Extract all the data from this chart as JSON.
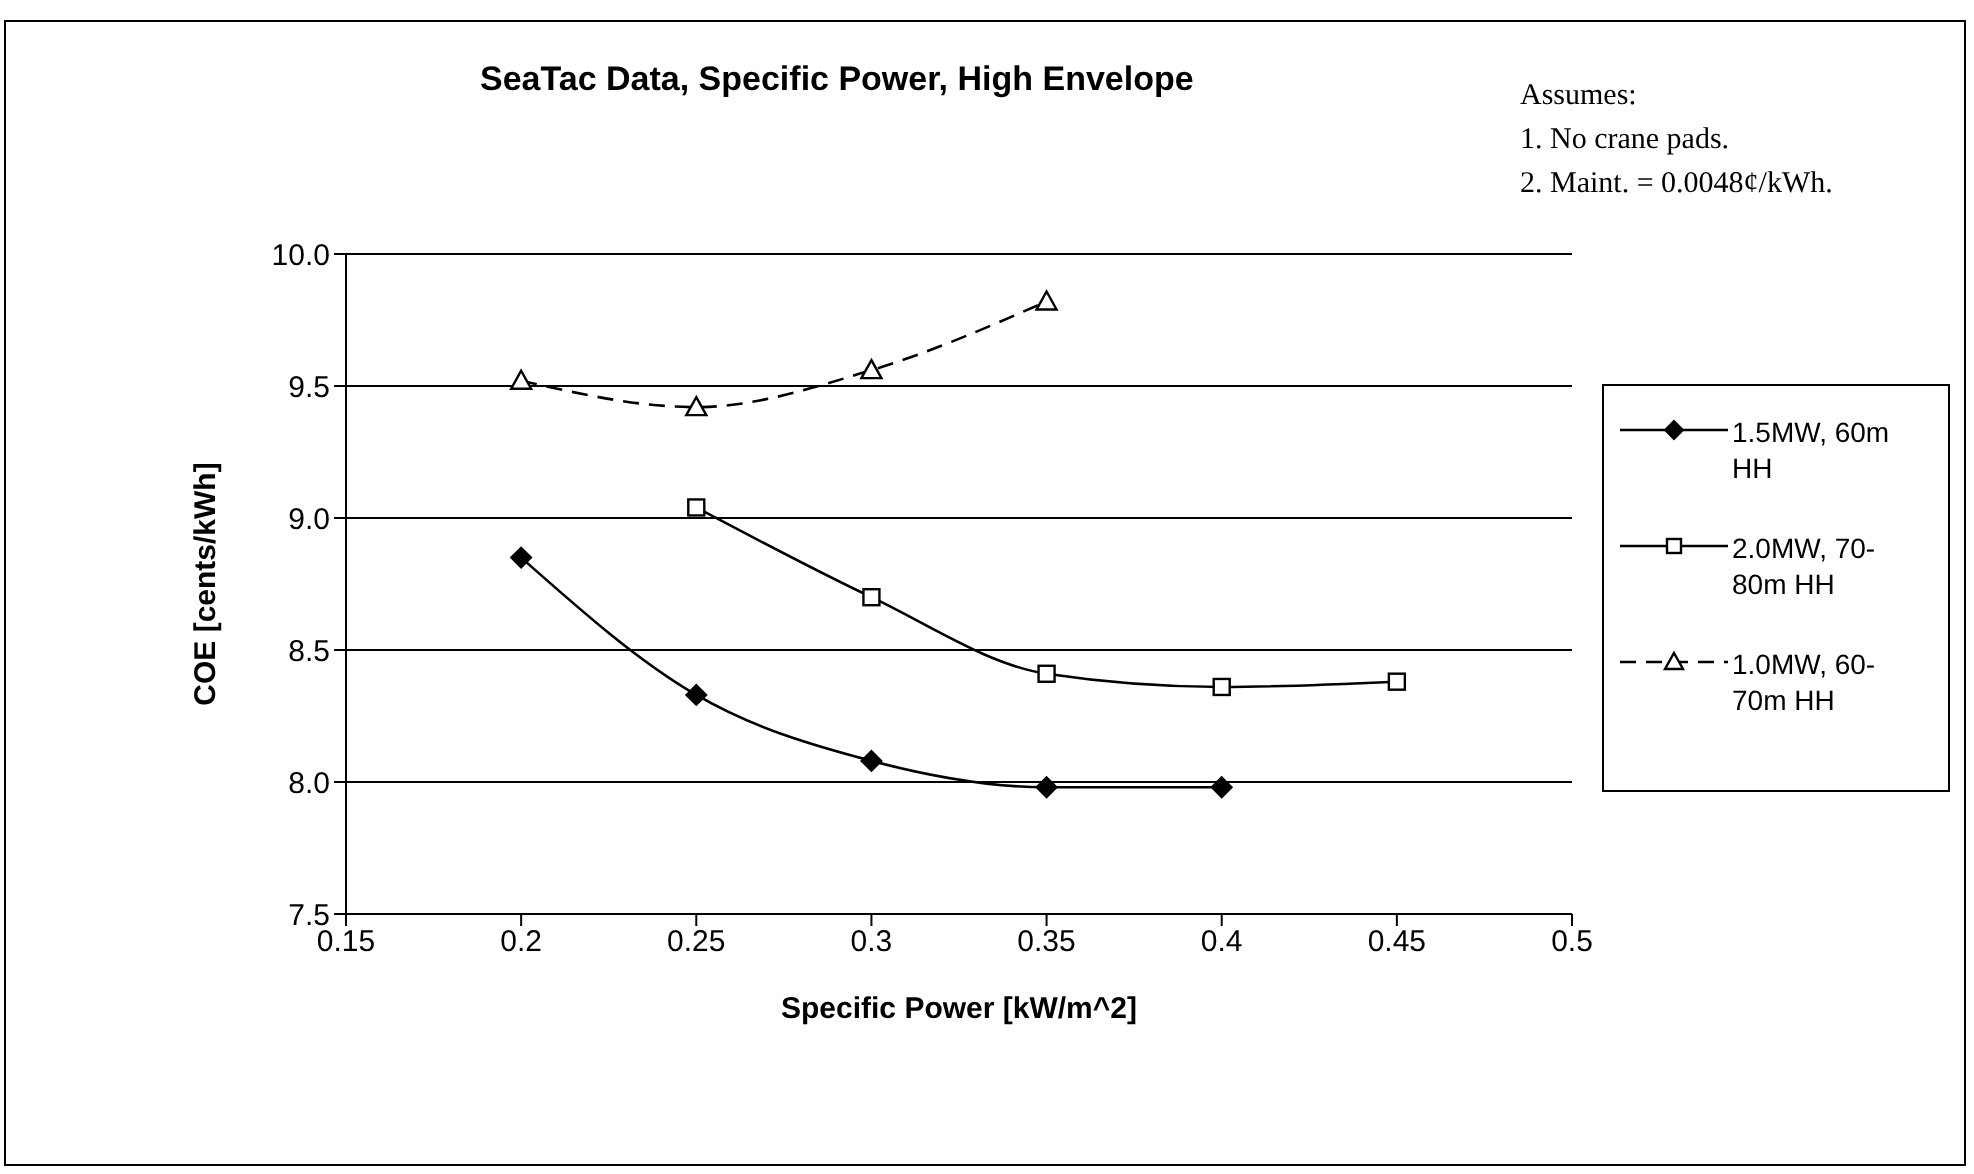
{
  "chart_data": {
    "type": "line",
    "title": "SeaTac Data, Specific Power, High Envelope",
    "xlabel": "Specific Power [kW/m^2]",
    "ylabel": "COE [cents/kWh]",
    "annotations": [
      "Assumes:",
      "1. No crane pads.",
      "2. Maint. = 0.0048¢/kWh."
    ],
    "xlim": [
      0.15,
      0.5
    ],
    "xticks": [
      0.15,
      0.2,
      0.25,
      0.3,
      0.35,
      0.4,
      0.45,
      0.5
    ],
    "ylim": [
      7.5,
      10
    ],
    "yticks": [
      {
        "value": 7.5,
        "label": "7.5"
      },
      {
        "value": 8,
        "label": "8.0"
      },
      {
        "value": 8.5,
        "label": "8.5"
      },
      {
        "value": 9,
        "label": "9.0"
      },
      {
        "value": 9.5,
        "label": "9.5"
      },
      {
        "value": 10,
        "label": "10.0"
      }
    ],
    "grid": "y",
    "legend": "right",
    "series": [
      {
        "name": "1.5MW, 60m HH",
        "color": "#000000",
        "marker": "diamond",
        "line_style": "solid",
        "x": [
          0.2,
          0.25,
          0.3,
          0.35,
          0.4
        ],
        "values": [
          8.85,
          8.33,
          8.08,
          7.98,
          7.98
        ]
      },
      {
        "name": "2.0MW, 70-80m HH",
        "color": "#000000",
        "marker": "square",
        "line_style": "solid",
        "x": [
          0.25,
          0.3,
          0.35,
          0.4,
          0.45
        ],
        "values": [
          9.04,
          8.7,
          8.41,
          8.36,
          8.38
        ]
      },
      {
        "name": "1.0MW, 60-70m HH",
        "color": "#000000",
        "marker": "triangle",
        "line_style": "dashed",
        "x": [
          0.2,
          0.25,
          0.3,
          0.35
        ],
        "values": [
          9.52,
          9.42,
          9.56,
          9.82
        ]
      }
    ]
  }
}
